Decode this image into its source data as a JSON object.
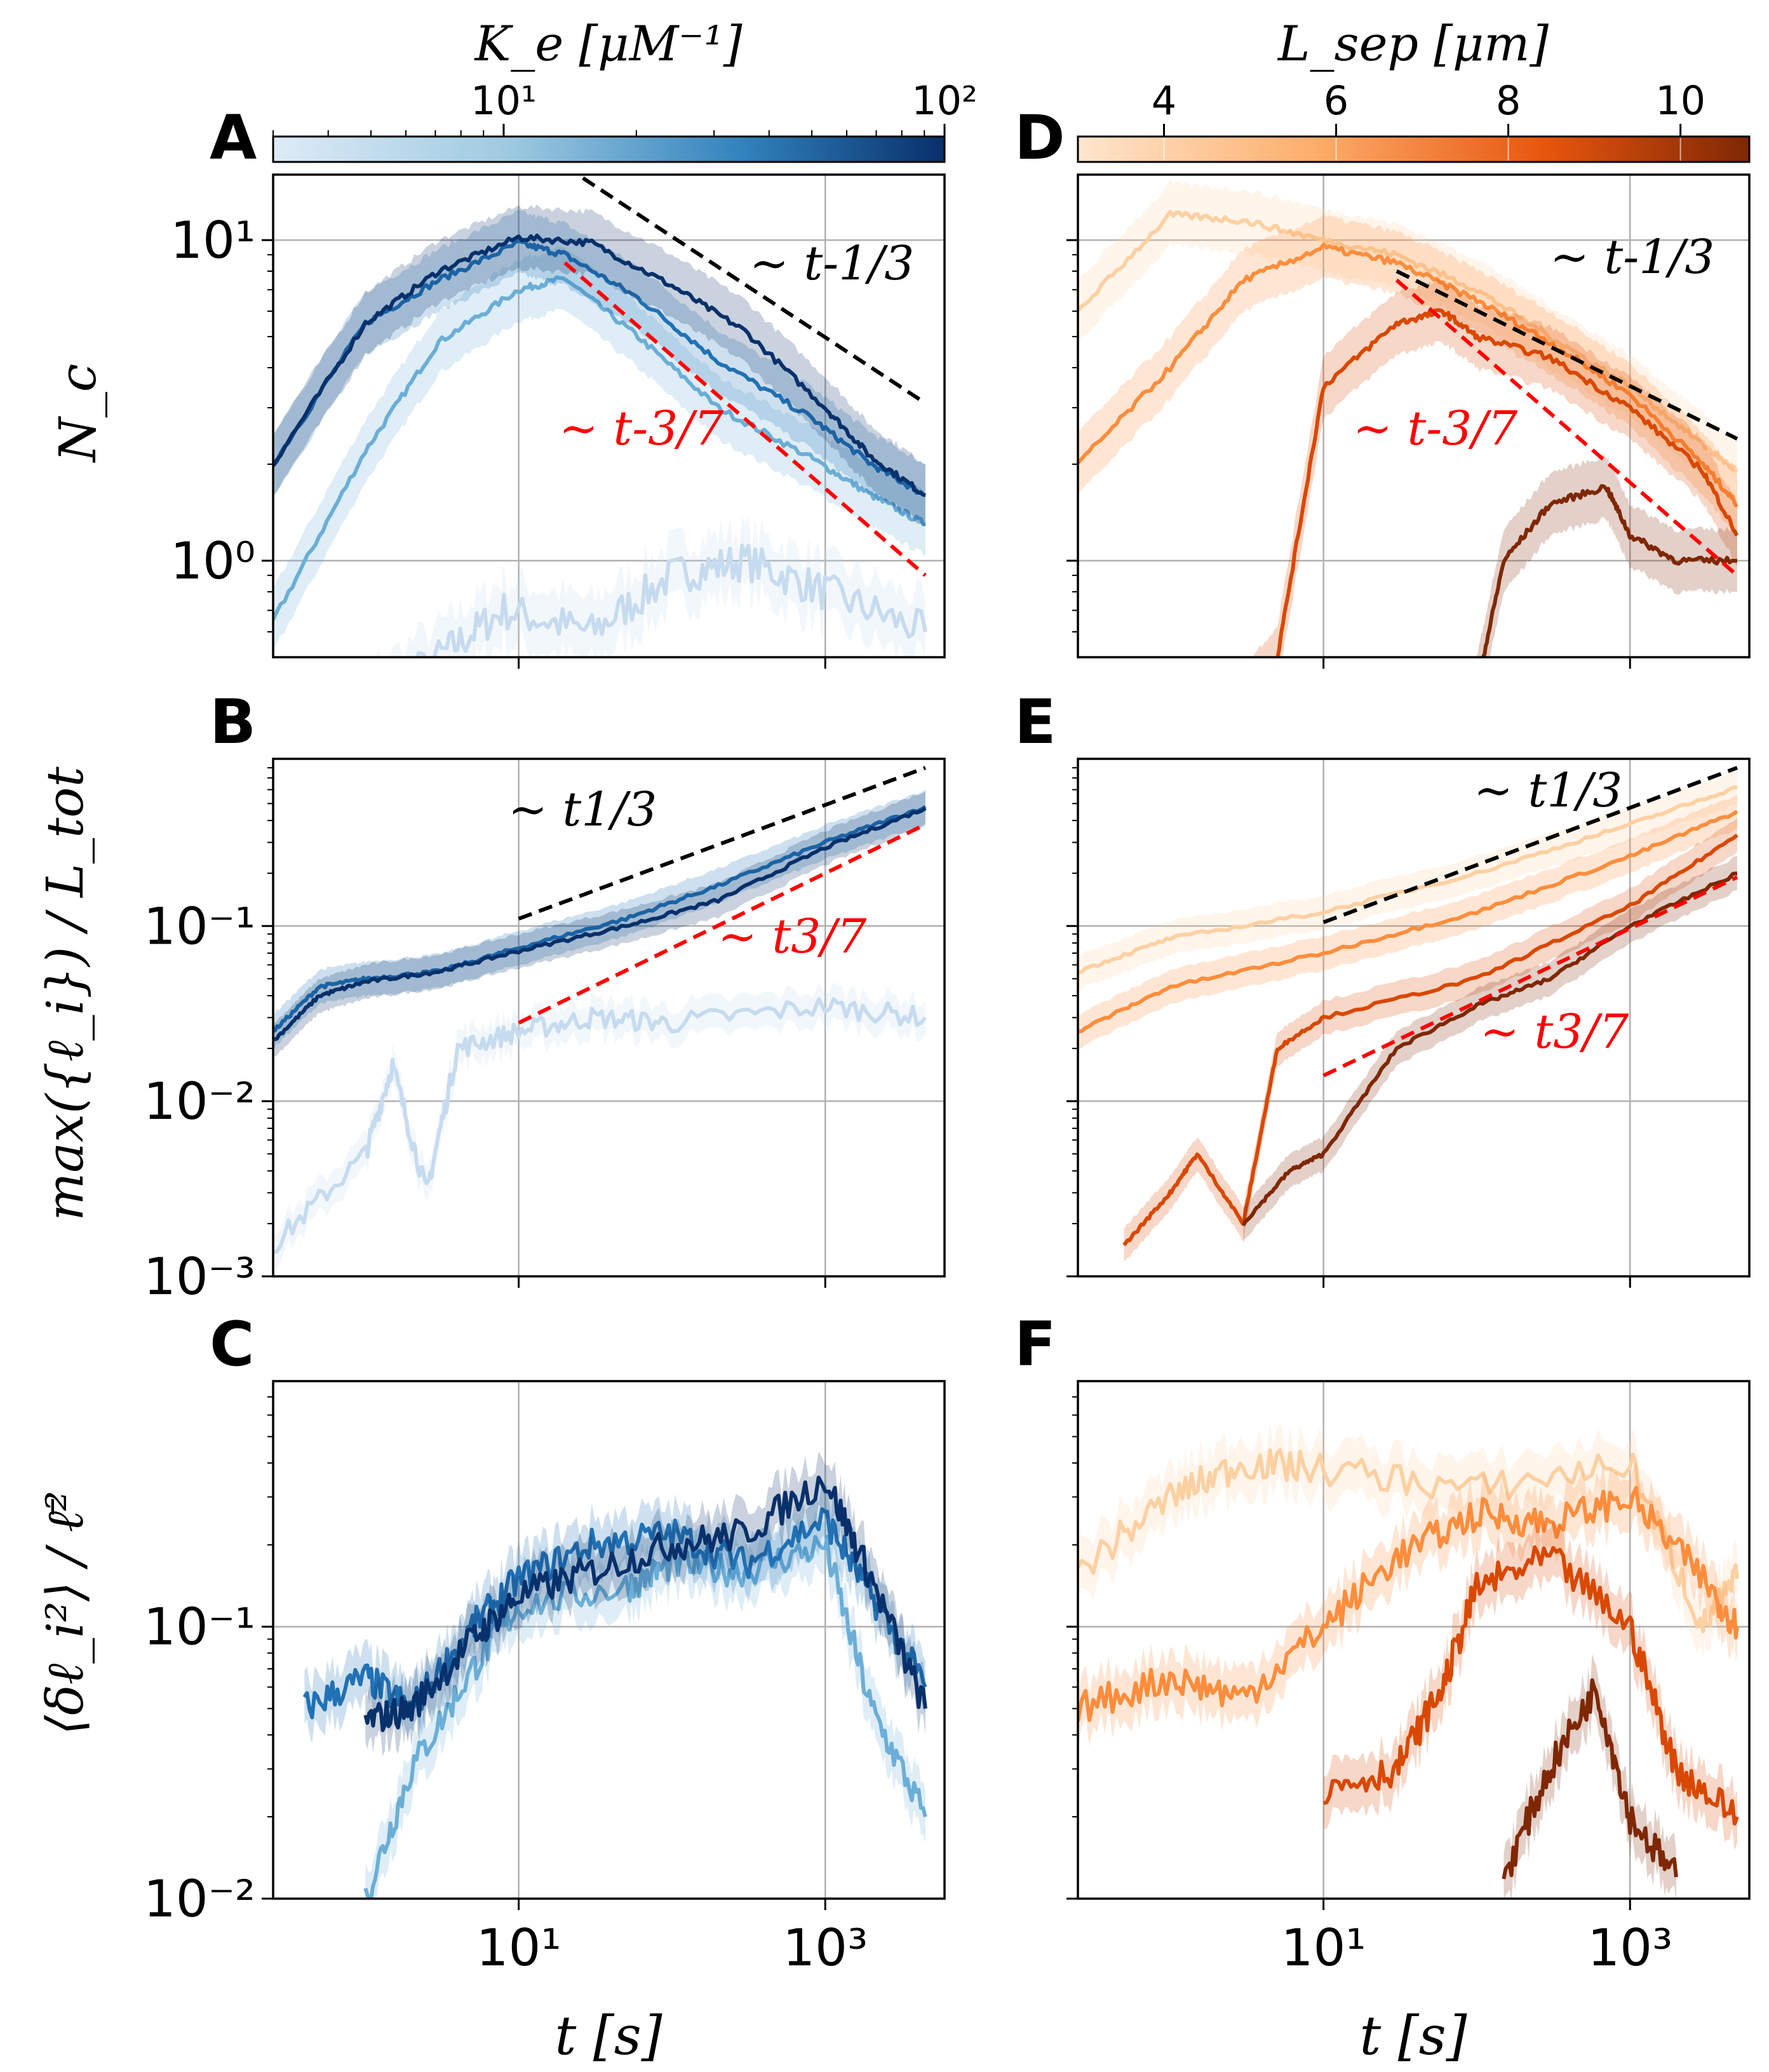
{
  "figure": {
    "colorbars": [
      {
        "label": "K_e [μM⁻¹]",
        "tick_labels": [
          "10¹",
          "10²"
        ],
        "range": [
          3,
          100
        ],
        "scale": "log",
        "cmap": "Blues"
      },
      {
        "label": "L_sep [μm]",
        "tick_labels": [
          "4",
          "6",
          "8",
          "10"
        ],
        "range": [
          3.0,
          10.8
        ],
        "scale": "linear",
        "cmap": "Oranges"
      }
    ],
    "shared_xlabel": "t [s]",
    "x_tick_labels": [
      "10¹",
      "10³"
    ]
  },
  "chart_data": [
    {
      "panel": "A",
      "type": "line",
      "xscale": "log",
      "yscale": "log",
      "xlim": [
        0.25,
        6000
      ],
      "ylim": [
        0.5,
        16
      ],
      "ylabel": "N_c",
      "y_tick_labels": [
        "10⁰",
        "10¹"
      ],
      "annotations": [
        {
          "text": "~t^{-1/3}",
          "color": "#000000",
          "x": [
            20,
            4500
          ],
          "y": [
            17,
            3.1
          ]
        },
        {
          "text": "~t^{-3/7}",
          "color": "#ff0000",
          "x": [
            20,
            4500
          ],
          "y": [
            8.5,
            0.9
          ]
        }
      ],
      "series": [
        {
          "color": "#c6dbef",
          "points": [
            [
              0.5,
              0.3
            ],
            [
              3,
              0.5
            ],
            [
              8,
              0.7
            ],
            [
              30,
              0.6
            ],
            [
              100,
              0.9
            ],
            [
              300,
              1.0
            ],
            [
              1000,
              0.8
            ],
            [
              4500,
              0.6
            ]
          ],
          "noisy": true
        },
        {
          "color": "#6baed6",
          "points": [
            [
              0.25,
              0.65
            ],
            [
              1,
              2.2
            ],
            [
              3,
              4.8
            ],
            [
              10,
              7.0
            ],
            [
              20,
              7.6
            ],
            [
              60,
              5.0
            ],
            [
              200,
              3.0
            ],
            [
              800,
              2.1
            ],
            [
              2000,
              1.6
            ],
            [
              4500,
              1.3
            ]
          ]
        },
        {
          "color": "#2171b5",
          "points": [
            [
              0.25,
              2.0
            ],
            [
              1,
              5.5
            ],
            [
              3,
              7.5
            ],
            [
              10,
              9.8
            ],
            [
              20,
              9.0
            ],
            [
              60,
              6.6
            ],
            [
              200,
              4.2
            ],
            [
              800,
              2.8
            ],
            [
              2000,
              2.0
            ],
            [
              4500,
              1.6
            ]
          ]
        },
        {
          "color": "#08306b",
          "points": [
            [
              0.25,
              2.0
            ],
            [
              1,
              5.5
            ],
            [
              3,
              8.0
            ],
            [
              10,
              10.2
            ],
            [
              30,
              9.8
            ],
            [
              100,
              7.2
            ],
            [
              300,
              5.2
            ],
            [
              1000,
              3.0
            ],
            [
              2000,
              2.1
            ],
            [
              4500,
              1.6
            ]
          ]
        }
      ]
    },
    {
      "panel": "B",
      "type": "line",
      "xscale": "log",
      "yscale": "log",
      "xlim": [
        0.25,
        6000
      ],
      "ylim": [
        0.001,
        0.9
      ],
      "ylabel": "max({ℓ_i}) / L_tot",
      "y_tick_labels": [
        "10⁻³",
        "10⁻²",
        "10⁻¹"
      ],
      "annotations": [
        {
          "text": "~t^{1/3}",
          "color": "#000000",
          "x": [
            10,
            4500
          ],
          "y": [
            0.11,
            0.8
          ]
        },
        {
          "text": "~t^{3/7}",
          "color": "#ff0000",
          "x": [
            10,
            4500
          ],
          "y": [
            0.028,
            0.38
          ]
        }
      ],
      "series": [
        {
          "color": "#c6dbef",
          "points": [
            [
              0.25,
              0.0015
            ],
            [
              1,
              0.005
            ],
            [
              1.5,
              0.016
            ],
            [
              2.5,
              0.003
            ],
            [
              4,
              0.02
            ],
            [
              10,
              0.025
            ],
            [
              30,
              0.03
            ],
            [
              100,
              0.028
            ],
            [
              1000,
              0.035
            ],
            [
              4500,
              0.03
            ]
          ],
          "noisy": true
        },
        {
          "color": "#2171b5",
          "points": [
            [
              0.25,
              0.025
            ],
            [
              0.5,
              0.045
            ],
            [
              1,
              0.05
            ],
            [
              3,
              0.055
            ],
            [
              10,
              0.075
            ],
            [
              50,
              0.11
            ],
            [
              200,
              0.17
            ],
            [
              1000,
              0.3
            ],
            [
              4500,
              0.48
            ]
          ]
        },
        {
          "color": "#08306b",
          "points": [
            [
              0.25,
              0.022
            ],
            [
              0.5,
              0.04
            ],
            [
              1,
              0.048
            ],
            [
              3,
              0.055
            ],
            [
              10,
              0.072
            ],
            [
              50,
              0.1
            ],
            [
              200,
              0.14
            ],
            [
              1000,
              0.28
            ],
            [
              4500,
              0.47
            ]
          ]
        }
      ]
    },
    {
      "panel": "C",
      "type": "line",
      "xscale": "log",
      "yscale": "log",
      "xlim": [
        0.25,
        6000
      ],
      "ylim": [
        0.01,
        0.8
      ],
      "ylabel": "⟨δℓ_i²⟩ / ℓ̄²",
      "y_tick_labels": [
        "10⁻²",
        "10⁻¹"
      ],
      "series": [
        {
          "color": "#6baed6",
          "points": [
            [
              1,
              0.01
            ],
            [
              2,
              0.03
            ],
            [
              5,
              0.07
            ],
            [
              10,
              0.12
            ],
            [
              50,
              0.14
            ],
            [
              100,
              0.17
            ],
            [
              300,
              0.16
            ],
            [
              1000,
              0.2
            ],
            [
              2000,
              0.05
            ],
            [
              4500,
              0.02
            ]
          ],
          "noisy": true
        },
        {
          "color": "#2171b5",
          "points": [
            [
              0.4,
              0.05
            ],
            [
              1,
              0.065
            ],
            [
              2,
              0.05
            ],
            [
              5,
              0.1
            ],
            [
              10,
              0.15
            ],
            [
              30,
              0.2
            ],
            [
              100,
              0.22
            ],
            [
              300,
              0.17
            ],
            [
              1000,
              0.25
            ],
            [
              2000,
              0.13
            ],
            [
              4500,
              0.06
            ]
          ],
          "noisy": true
        },
        {
          "color": "#08306b",
          "points": [
            [
              1,
              0.045
            ],
            [
              2,
              0.05
            ],
            [
              5,
              0.09
            ],
            [
              10,
              0.13
            ],
            [
              30,
              0.16
            ],
            [
              100,
              0.2
            ],
            [
              300,
              0.22
            ],
            [
              1000,
              0.35
            ],
            [
              2000,
              0.15
            ],
            [
              4500,
              0.05
            ]
          ],
          "noisy": true
        }
      ]
    },
    {
      "panel": "D",
      "type": "line",
      "xscale": "log",
      "yscale": "log",
      "xlim": [
        0.25,
        6000
      ],
      "ylim": [
        0.5,
        16
      ],
      "annotations": [
        {
          "text": "~t^{-1/3}",
          "color": "#000000",
          "x": [
            30,
            5000
          ],
          "y": [
            8.0,
            2.4
          ]
        },
        {
          "text": "~t^{-3/7}",
          "color": "#ff0000",
          "x": [
            30,
            5000
          ],
          "y": [
            7.5,
            0.9
          ]
        }
      ],
      "series": [
        {
          "color": "#fdd0a2",
          "points": [
            [
              0.25,
              6.0
            ],
            [
              1,
              12.0
            ],
            [
              3,
              11.5
            ],
            [
              10,
              10.0
            ],
            [
              30,
              9.0
            ],
            [
              100,
              7.0
            ],
            [
              300,
              5.0
            ],
            [
              1000,
              3.5
            ],
            [
              3000,
              2.3
            ],
            [
              5000,
              1.9
            ]
          ]
        },
        {
          "color": "#fd8d3c",
          "points": [
            [
              0.25,
              2.0
            ],
            [
              1,
              4.0
            ],
            [
              3,
              7.5
            ],
            [
              10,
              9.5
            ],
            [
              30,
              8.5
            ],
            [
              100,
              6.5
            ],
            [
              300,
              4.8
            ],
            [
              1000,
              3.3
            ],
            [
              3000,
              2.0
            ],
            [
              5000,
              1.5
            ]
          ]
        },
        {
          "color": "#d94801",
          "points": [
            [
              2,
              0.3
            ],
            [
              5,
              0.5
            ],
            [
              10,
              3.5
            ],
            [
              30,
              5.5
            ],
            [
              60,
              6.0
            ],
            [
              100,
              5.0
            ],
            [
              300,
              4.3
            ],
            [
              1000,
              3.0
            ],
            [
              3000,
              1.9
            ],
            [
              5000,
              1.2
            ]
          ]
        },
        {
          "color": "#7f2704",
          "points": [
            [
              100,
              0.4
            ],
            [
              150,
              1.0
            ],
            [
              300,
              1.5
            ],
            [
              700,
              1.7
            ],
            [
              1000,
              1.2
            ],
            [
              2000,
              1.0
            ],
            [
              5000,
              1.0
            ]
          ]
        }
      ]
    },
    {
      "panel": "E",
      "type": "line",
      "xscale": "log",
      "yscale": "log",
      "xlim": [
        0.25,
        6000
      ],
      "ylim": [
        0.001,
        0.9
      ],
      "annotations": [
        {
          "text": "~t^{1/3}",
          "color": "#000000",
          "x": [
            10,
            5000
          ],
          "y": [
            0.105,
            0.8
          ]
        },
        {
          "text": "~t^{3/7}",
          "color": "#ff0000",
          "x": [
            10,
            5000
          ],
          "y": [
            0.014,
            0.19
          ]
        }
      ],
      "series": [
        {
          "color": "#fdd0a2",
          "points": [
            [
              0.25,
              0.055
            ],
            [
              1,
              0.085
            ],
            [
              10,
              0.12
            ],
            [
              100,
              0.2
            ],
            [
              1000,
              0.38
            ],
            [
              5000,
              0.62
            ]
          ]
        },
        {
          "color": "#fd8d3c",
          "points": [
            [
              0.25,
              0.025
            ],
            [
              1,
              0.045
            ],
            [
              10,
              0.07
            ],
            [
              100,
              0.12
            ],
            [
              1000,
              0.25
            ],
            [
              5000,
              0.45
            ]
          ]
        },
        {
          "color": "#d94801",
          "points": [
            [
              0.5,
              0.0015
            ],
            [
              1,
              0.003
            ],
            [
              1.5,
              0.005
            ],
            [
              3,
              0.002
            ],
            [
              5,
              0.02
            ],
            [
              10,
              0.03
            ],
            [
              100,
              0.05
            ],
            [
              1000,
              0.13
            ],
            [
              5000,
              0.33
            ]
          ]
        },
        {
          "color": "#7f2704",
          "points": [
            [
              3,
              0.002
            ],
            [
              6,
              0.004
            ],
            [
              10,
              0.005
            ],
            [
              30,
              0.02
            ],
            [
              100,
              0.035
            ],
            [
              300,
              0.05
            ],
            [
              1000,
              0.1
            ],
            [
              5000,
              0.2
            ]
          ]
        }
      ]
    },
    {
      "panel": "F",
      "type": "line",
      "xscale": "log",
      "yscale": "log",
      "xlim": [
        0.25,
        6000
      ],
      "ylim": [
        0.01,
        0.8
      ],
      "series": [
        {
          "color": "#fdd0a2",
          "points": [
            [
              0.25,
              0.16
            ],
            [
              1,
              0.3
            ],
            [
              3,
              0.4
            ],
            [
              10,
              0.38
            ],
            [
              100,
              0.32
            ],
            [
              1000,
              0.4
            ],
            [
              3000,
              0.1
            ],
            [
              5000,
              0.15
            ]
          ],
          "noisy": true
        },
        {
          "color": "#fd8d3c",
          "points": [
            [
              0.25,
              0.05
            ],
            [
              1,
              0.065
            ],
            [
              3,
              0.055
            ],
            [
              10,
              0.1
            ],
            [
              30,
              0.18
            ],
            [
              100,
              0.26
            ],
            [
              300,
              0.24
            ],
            [
              1000,
              0.3
            ],
            [
              3000,
              0.15
            ],
            [
              5000,
              0.1
            ]
          ],
          "noisy": true
        },
        {
          "color": "#d94801",
          "points": [
            [
              10,
              0.025
            ],
            [
              30,
              0.03
            ],
            [
              60,
              0.06
            ],
            [
              100,
              0.14
            ],
            [
              300,
              0.18
            ],
            [
              1000,
              0.1
            ],
            [
              2000,
              0.03
            ],
            [
              5000,
              0.02
            ]
          ],
          "noisy": true
        },
        {
          "color": "#7f2704",
          "points": [
            [
              150,
              0.012
            ],
            [
              300,
              0.03
            ],
            [
              600,
              0.06
            ],
            [
              1000,
              0.02
            ],
            [
              2000,
              0.012
            ]
          ],
          "noisy": true
        }
      ]
    }
  ]
}
